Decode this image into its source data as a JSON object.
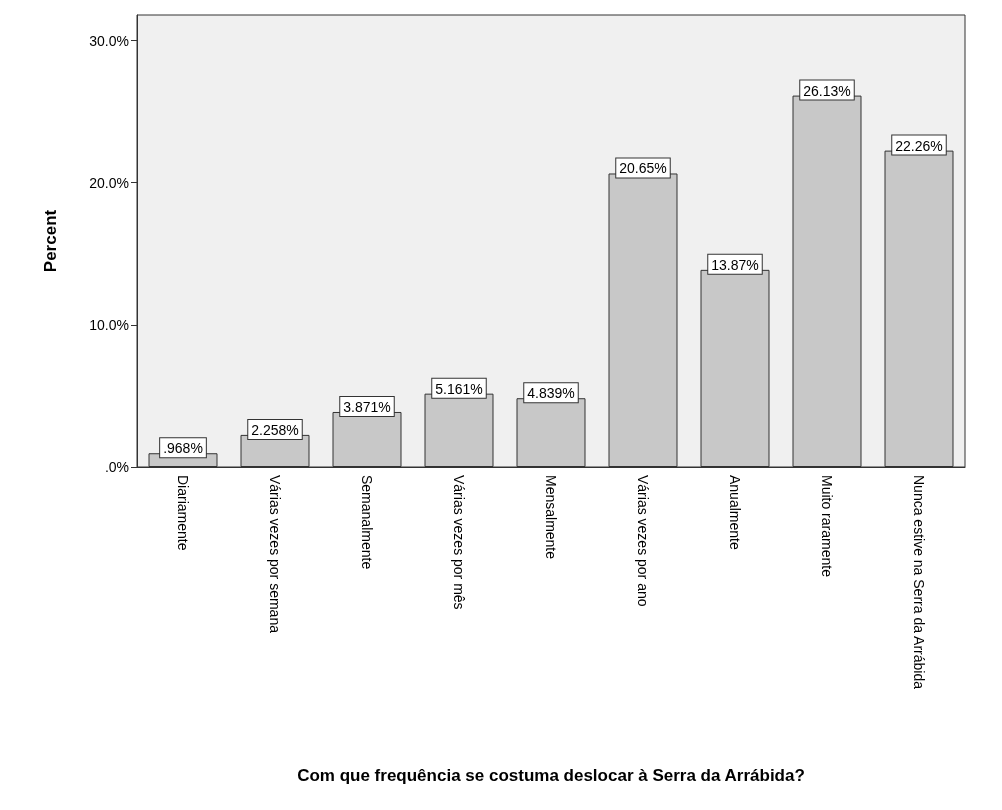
{
  "chart_data": {
    "type": "bar",
    "xlabel": "Com que frequência se costuma deslocar à Serra da Arrábida?",
    "ylabel": "Percent",
    "categories": [
      "Diariamente",
      "Várias vezes por semana",
      "Semanalmente",
      "Várias vezes por mês",
      "Mensalmente",
      "Várias vezes por ano",
      "Anualmente",
      "Muito raramente",
      "Nunca estive na Serra da Arrábida"
    ],
    "values": [
      0.968,
      2.258,
      3.871,
      5.161,
      4.839,
      20.65,
      13.87,
      26.13,
      22.26
    ],
    "value_labels": [
      ".968%",
      "2.258%",
      "3.871%",
      "5.161%",
      "4.839%",
      "20.65%",
      "13.87%",
      "26.13%",
      "22.26%"
    ],
    "color": "#c8c8c8",
    "ylim": [
      0,
      31.8
    ],
    "yticks": [
      {
        "value": 0,
        "label": ".0%"
      },
      {
        "value": 10,
        "label": "10.0%"
      },
      {
        "value": 20,
        "label": "20.0%"
      },
      {
        "value": 30,
        "label": "30.0%"
      }
    ],
    "grid": false
  }
}
